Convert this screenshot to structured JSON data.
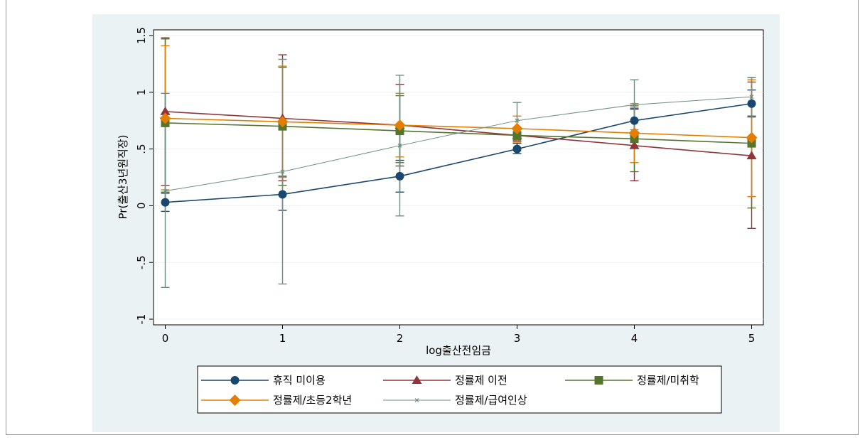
{
  "chart_data": {
    "type": "line",
    "xlabel": "log출산전임금",
    "ylabel": "Pr(출산3년원직장)",
    "x": [
      0,
      1,
      2,
      3,
      4,
      5
    ],
    "xlim": [
      -0.1,
      5.1
    ],
    "ylim": [
      -1.05,
      1.55
    ],
    "x_ticks": [
      "0",
      "1",
      "2",
      "3",
      "4",
      "5"
    ],
    "y_ticks": [
      "-1",
      "-.5",
      "0",
      ".5",
      "1",
      "1.5"
    ],
    "y_tick_values": [
      -1,
      -0.5,
      0,
      0.5,
      1,
      1.5
    ],
    "grid": true,
    "legend_position": "bottom",
    "series": [
      {
        "name": "휴직 미이용",
        "color": "#1a476f",
        "marker": "circle",
        "values": [
          0.03,
          0.1,
          0.26,
          0.5,
          0.75,
          0.9
        ],
        "ci_low": [
          -0.05,
          -0.04,
          0.12,
          0.46,
          0.65,
          0.79
        ],
        "ci_high": [
          0.11,
          0.26,
          0.4,
          0.55,
          0.86,
          1.02
        ]
      },
      {
        "name": "정률제 이전",
        "color": "#90353b",
        "marker": "triangle",
        "values": [
          0.83,
          0.77,
          0.71,
          0.62,
          0.53,
          0.44
        ],
        "ci_low": [
          0.18,
          0.22,
          0.35,
          0.57,
          0.22,
          -0.2
        ],
        "ci_high": [
          1.48,
          1.33,
          1.07,
          0.67,
          0.85,
          1.09
        ]
      },
      {
        "name": "정률제/미취학",
        "color": "#55752f",
        "marker": "square",
        "values": [
          0.73,
          0.7,
          0.66,
          0.62,
          0.59,
          0.55
        ],
        "ci_low": [
          0.12,
          0.18,
          0.38,
          0.58,
          0.3,
          -0.02
        ],
        "ci_high": [
          1.47,
          1.22,
          0.97,
          0.67,
          0.88,
          1.13
        ]
      },
      {
        "name": "정률제/초등2학년",
        "color": "#e37e00",
        "marker": "diamond",
        "values": [
          0.77,
          0.74,
          0.71,
          0.68,
          0.64,
          0.6
        ],
        "ci_low": [
          0.14,
          0.25,
          0.43,
          0.56,
          0.38,
          0.08
        ],
        "ci_high": [
          1.41,
          1.23,
          0.99,
          0.79,
          0.9,
          1.11
        ]
      },
      {
        "name": "정률제/급여인상",
        "color": "#6e8e84",
        "marker": "x",
        "values": [
          0.13,
          0.3,
          0.53,
          0.75,
          0.89,
          0.96
        ],
        "ci_low": [
          -0.72,
          -0.69,
          -0.09,
          0.59,
          0.67,
          0.78
        ],
        "ci_high": [
          0.99,
          1.29,
          1.15,
          0.91,
          1.11,
          1.13
        ]
      }
    ]
  }
}
